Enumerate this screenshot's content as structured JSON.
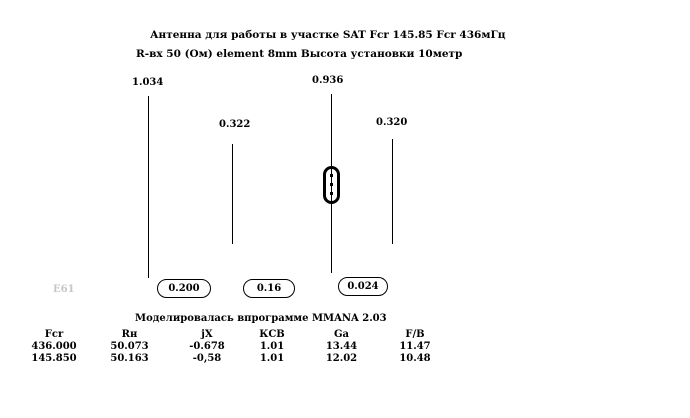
{
  "header": {
    "line1": "Антенна для работы в участке SAT  Fcr 145.85  Fcr 436мГц",
    "line2": "R-вх 50 (Ом) element 8mm    Высота установки 10метр"
  },
  "elements": {
    "lengths": [
      "1.034",
      "0.322",
      "0.936",
      "0.320"
    ],
    "spacings": [
      "0.200",
      "0.16",
      "0.024"
    ]
  },
  "watermark": "E61",
  "footer": {
    "caption": "Моделировалась впрограмме MMANA 2.03"
  },
  "results": {
    "headers": [
      "Fcr",
      "Rн",
      "jX",
      "КСВ",
      "Ga",
      "F/B"
    ],
    "rows": [
      [
        "436.000",
        "50.073",
        "-0.678",
        "1.01",
        "13.44",
        "11.47"
      ],
      [
        "145.850",
        "50.163",
        "-0,58",
        "1.01",
        "12.02",
        "10.48"
      ]
    ]
  }
}
